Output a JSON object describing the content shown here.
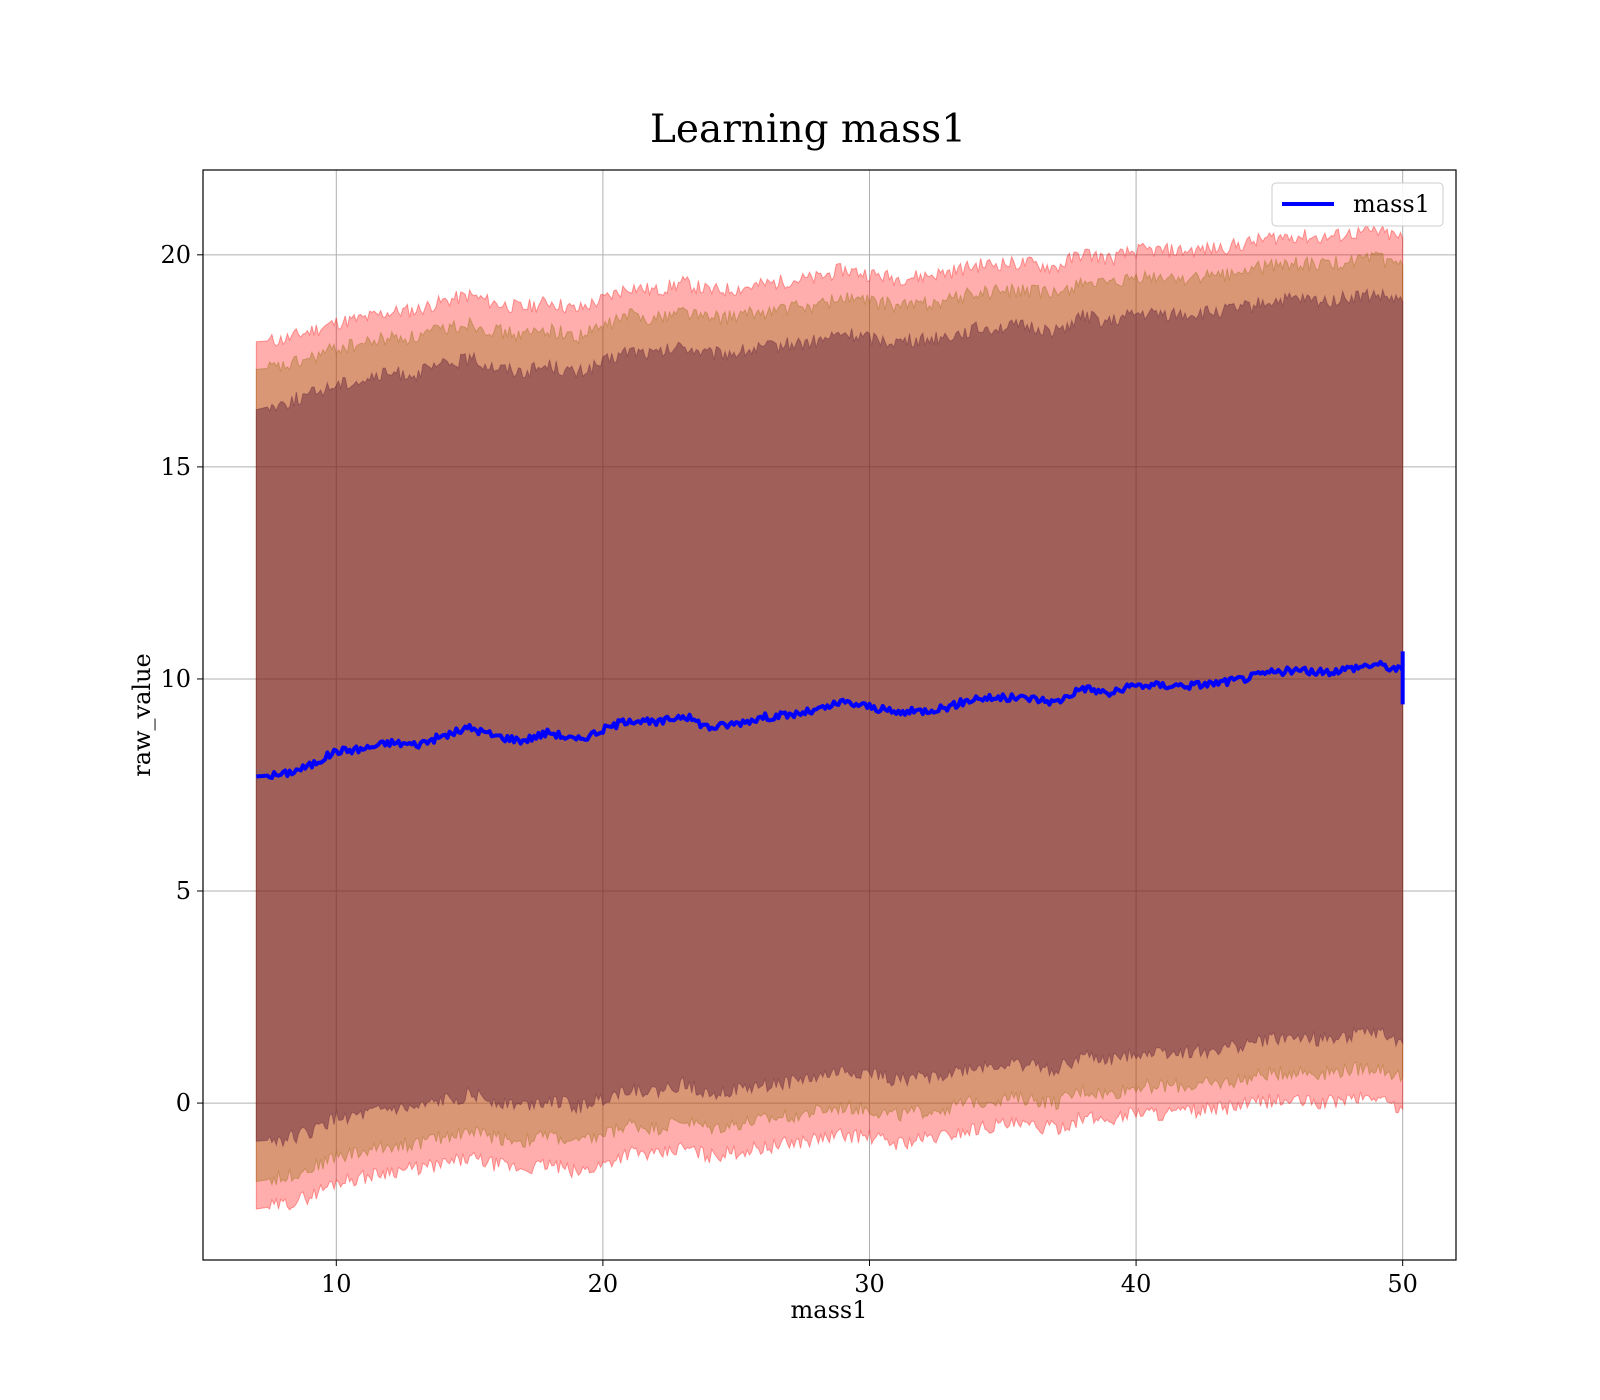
{
  "chart_data": {
    "type": "line",
    "title": "Learning mass1",
    "xlabel": "mass1",
    "ylabel": "raw_value",
    "xlim": [
      5,
      52
    ],
    "ylim": [
      -3.7,
      22
    ],
    "xticks": [
      10,
      20,
      30,
      40,
      50
    ],
    "yticks": [
      0,
      5,
      10,
      15,
      20
    ],
    "grid": true,
    "legend": {
      "position": "top-right",
      "entries": [
        "mass1"
      ]
    },
    "colors": {
      "line": "#0000ff",
      "outer_band": "#ff0000",
      "middle_band": "#8b6b00",
      "inner_band": "#5a1a3a",
      "grid": "#b0b0b0"
    },
    "series": [
      {
        "name": "mass1",
        "x": [
          7,
          8,
          9,
          10,
          11,
          12,
          13,
          14,
          15,
          16,
          17,
          18,
          19,
          20,
          21,
          22,
          23,
          24,
          25,
          26,
          27,
          28,
          29,
          30,
          31,
          32,
          33,
          34,
          35,
          36,
          37,
          38,
          39,
          40,
          41,
          42,
          43,
          44,
          45,
          46,
          47,
          48,
          49,
          50
        ],
        "values": [
          7.7,
          7.75,
          7.95,
          8.3,
          8.35,
          8.5,
          8.45,
          8.65,
          8.85,
          8.65,
          8.55,
          8.75,
          8.55,
          8.8,
          9.05,
          8.95,
          9.15,
          8.85,
          8.95,
          9.1,
          9.15,
          9.25,
          9.45,
          9.35,
          9.2,
          9.25,
          9.35,
          9.55,
          9.55,
          9.55,
          9.45,
          9.8,
          9.65,
          9.85,
          9.85,
          9.85,
          9.9,
          10.0,
          10.15,
          10.2,
          10.15,
          10.25,
          10.35,
          10.2
        ]
      }
    ],
    "bands": [
      {
        "name": "outer",
        "lower": [
          -2.5,
          -2.4,
          -2.2,
          -1.85,
          -1.75,
          -1.6,
          -1.55,
          -1.45,
          -1.3,
          -1.45,
          -1.55,
          -1.45,
          -1.65,
          -1.45,
          -1.15,
          -1.25,
          -1.05,
          -1.25,
          -1.15,
          -1.05,
          -0.95,
          -0.85,
          -0.75,
          -0.8,
          -0.95,
          -0.85,
          -0.75,
          -0.6,
          -0.5,
          -0.55,
          -0.6,
          -0.35,
          -0.4,
          -0.2,
          -0.25,
          -0.2,
          -0.15,
          -0.05,
          0.05,
          0.05,
          0.0,
          0.1,
          0.15,
          -0.15
        ],
        "upper": [
          17.95,
          18.0,
          18.2,
          18.4,
          18.5,
          18.65,
          18.7,
          18.9,
          19.05,
          18.85,
          18.75,
          18.9,
          18.7,
          18.95,
          19.25,
          19.15,
          19.35,
          19.15,
          19.2,
          19.3,
          19.4,
          19.45,
          19.65,
          19.55,
          19.45,
          19.5,
          19.6,
          19.75,
          19.8,
          19.8,
          19.7,
          20.05,
          19.9,
          20.1,
          20.1,
          20.1,
          20.15,
          20.25,
          20.4,
          20.45,
          20.4,
          20.5,
          20.55,
          20.4
        ]
      },
      {
        "name": "middle",
        "lower": [
          -1.85,
          -1.75,
          -1.55,
          -1.25,
          -1.15,
          -1.0,
          -0.95,
          -0.8,
          -0.65,
          -0.8,
          -0.9,
          -0.75,
          -0.95,
          -0.75,
          -0.5,
          -0.6,
          -0.4,
          -0.6,
          -0.5,
          -0.4,
          -0.3,
          -0.2,
          -0.1,
          -0.15,
          -0.3,
          -0.2,
          -0.1,
          0.05,
          0.1,
          0.1,
          0.0,
          0.3,
          0.2,
          0.4,
          0.4,
          0.4,
          0.45,
          0.55,
          0.7,
          0.75,
          0.7,
          0.8,
          0.85,
          0.6
        ],
        "upper": [
          17.3,
          17.35,
          17.55,
          17.8,
          17.9,
          18.05,
          18.05,
          18.25,
          18.4,
          18.2,
          18.1,
          18.25,
          18.05,
          18.3,
          18.6,
          18.5,
          18.7,
          18.5,
          18.55,
          18.65,
          18.75,
          18.8,
          19.0,
          18.9,
          18.8,
          18.85,
          18.95,
          19.1,
          19.15,
          19.15,
          19.05,
          19.4,
          19.25,
          19.45,
          19.45,
          19.45,
          19.5,
          19.6,
          19.75,
          19.8,
          19.75,
          19.85,
          19.9,
          19.75
        ]
      },
      {
        "name": "inner",
        "lower": [
          -0.9,
          -0.85,
          -0.7,
          -0.35,
          -0.3,
          -0.15,
          -0.15,
          0.05,
          0.2,
          0.05,
          -0.05,
          0.1,
          -0.1,
          0.1,
          0.35,
          0.25,
          0.45,
          0.25,
          0.3,
          0.4,
          0.5,
          0.6,
          0.75,
          0.7,
          0.55,
          0.6,
          0.7,
          0.85,
          0.9,
          0.9,
          0.8,
          1.1,
          1.0,
          1.2,
          1.2,
          1.2,
          1.25,
          1.35,
          1.5,
          1.55,
          1.5,
          1.6,
          1.65,
          1.4
        ],
        "upper": [
          16.35,
          16.5,
          16.7,
          16.95,
          17.05,
          17.2,
          17.2,
          17.4,
          17.55,
          17.35,
          17.25,
          17.4,
          17.2,
          17.45,
          17.75,
          17.65,
          17.85,
          17.65,
          17.7,
          17.8,
          17.9,
          17.95,
          18.15,
          18.05,
          17.95,
          18.0,
          18.1,
          18.25,
          18.3,
          18.3,
          18.2,
          18.55,
          18.4,
          18.6,
          18.6,
          18.6,
          18.65,
          18.75,
          18.9,
          18.95,
          18.9,
          19.0,
          19.05,
          18.9
        ]
      }
    ]
  }
}
